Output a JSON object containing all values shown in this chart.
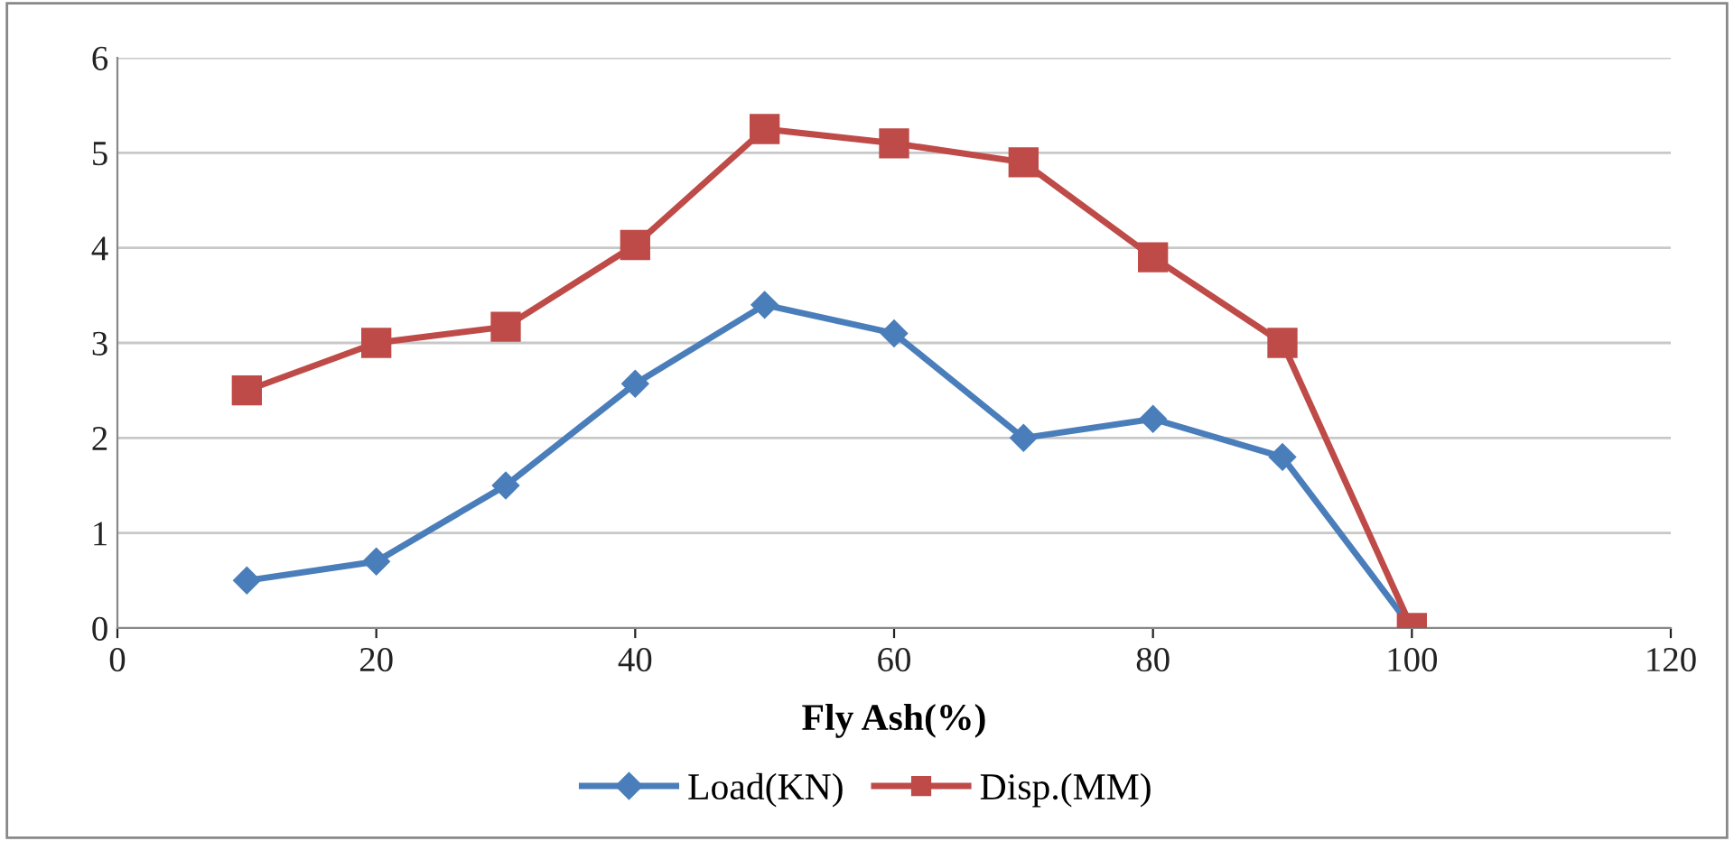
{
  "chart_data": {
    "type": "line",
    "xlabel": "Fly Ash(%)",
    "x": [
      10,
      20,
      30,
      40,
      50,
      60,
      70,
      80,
      90,
      100
    ],
    "series": [
      {
        "name": "Load(KN)",
        "color": "#4a7ebb",
        "marker": "diamond",
        "values": [
          0.5,
          0.7,
          1.5,
          2.57,
          3.4,
          3.1,
          2.0,
          2.2,
          1.8,
          0.0
        ]
      },
      {
        "name": "Disp.(MM)",
        "color": "#be4b48",
        "marker": "square",
        "values": [
          2.5,
          3.0,
          3.17,
          4.03,
          5.25,
          5.1,
          4.9,
          3.9,
          3.0,
          0.0
        ]
      }
    ],
    "xlim": [
      0,
      120
    ],
    "xticks": [
      0,
      20,
      40,
      60,
      80,
      100,
      120
    ],
    "ylim": [
      0,
      6
    ],
    "yticks": [
      0,
      1,
      2,
      3,
      4,
      5,
      6
    ],
    "grid": "y",
    "legend": "bottom",
    "line_style": "solid"
  }
}
